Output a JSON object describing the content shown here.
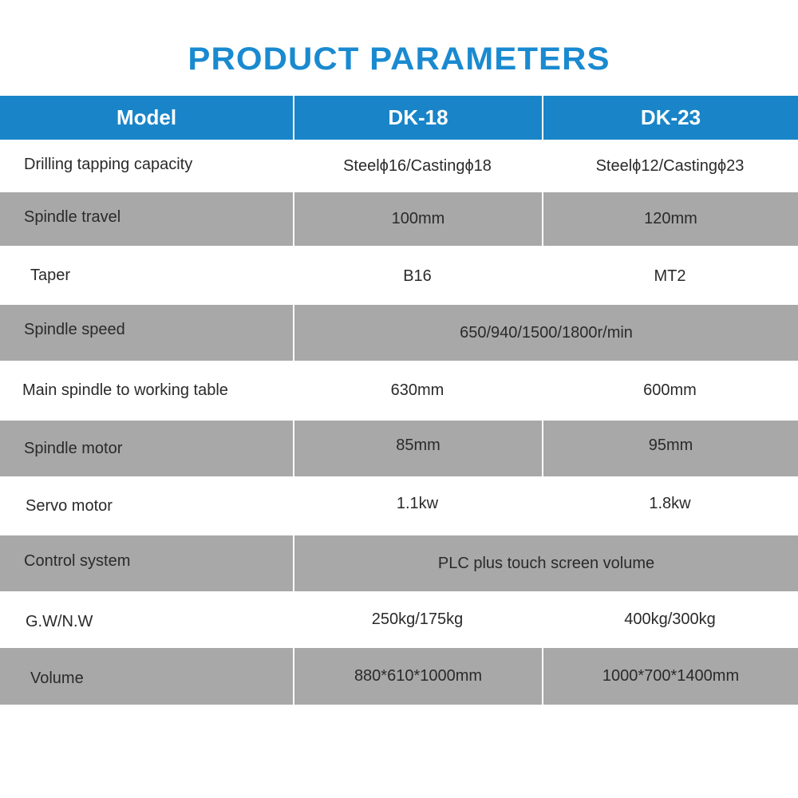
{
  "title": "PRODUCT PARAMETERS",
  "header": [
    "Model",
    "DK-18",
    "DK-23"
  ],
  "rows": [
    {
      "label": "Drilling tapping capacity",
      "dk18": "Steelϕ16/Castingϕ18",
      "dk23": "Steelϕ12/Castingϕ23"
    },
    {
      "label": "Spindle travel",
      "dk18": "100mm",
      "dk23": "120mm"
    },
    {
      "label": "Taper",
      "dk18": "B16",
      "dk23": "MT2"
    },
    {
      "label": "Spindle speed",
      "merged": "650/940/1500/1800r/min"
    },
    {
      "label": "Main spindle to working table",
      "dk18": "630mm",
      "dk23": "600mm"
    },
    {
      "label": "Spindle motor",
      "dk18": "85mm",
      "dk23": "95mm"
    },
    {
      "label": "Servo motor",
      "dk18": "1.1kw",
      "dk23": "1.8kw"
    },
    {
      "label": "Control system",
      "merged": "PLC plus touch screen volume"
    },
    {
      "label": "G.W/N.W",
      "dk18": "250kg/175kg",
      "dk23": "400kg/300kg"
    },
    {
      "label": "Volume",
      "dk18": "880*610*1000mm",
      "dk23": "1000*700*1400mm"
    }
  ],
  "colors": {
    "header_bg": "#1985c8",
    "title": "#1a8ad0",
    "gray_row": "#a8a8a8"
  }
}
